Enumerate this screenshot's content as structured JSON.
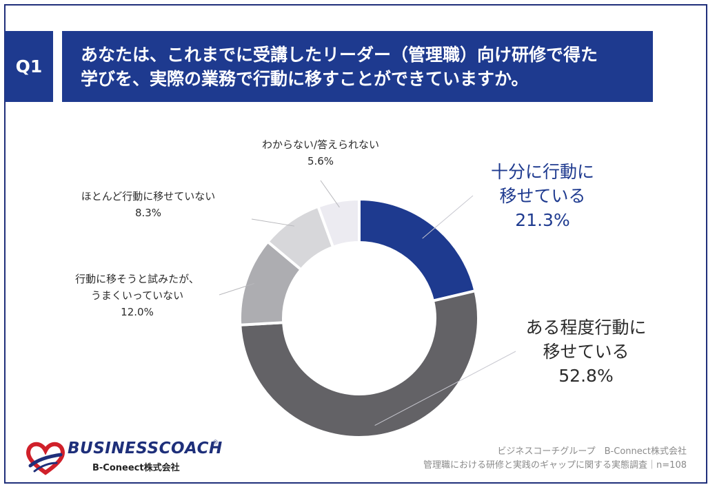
{
  "question": {
    "badge": "Q1",
    "line1": "あなたは、これまでに受講したリーダー（管理職）向け研修で得た",
    "line2": "学びを、実際の業務で行動に移すことができていますか。"
  },
  "chart_data": {
    "type": "pie",
    "donut": true,
    "start": "12 o'clock, clockwise",
    "slices": [
      {
        "label_lines": [
          "十分に行動に",
          "移せている"
        ],
        "value_label": "21.3%",
        "value": 21.3,
        "color": "#1e3a8f",
        "label_color": "#1e3a8f"
      },
      {
        "label_lines": [
          "ある程度行動に",
          "移せている"
        ],
        "value_label": "52.8%",
        "value": 52.8,
        "color": "#636266",
        "label_color": "#2b2b2b"
      },
      {
        "label_lines": [
          "行動に移そうと試みたが、",
          "うまくいっていない"
        ],
        "value_label": "12.0%",
        "value": 12.0,
        "color": "#adadb1",
        "label_color": "#2b2b2b"
      },
      {
        "label_lines": [
          "ほとんど行動に移せていない"
        ],
        "value_label": "8.3%",
        "value": 8.3,
        "color": "#d7d7da",
        "label_color": "#2b2b2b"
      },
      {
        "label_lines": [
          "わからない/答えられない"
        ],
        "value_label": "5.6%",
        "value": 5.6,
        "color": "#ecebf1",
        "label_color": "#2b2b2b"
      }
    ]
  },
  "footer": {
    "line1": "ビジネスコーチグループ　B-Connect株式会社",
    "line2": "管理職における研修と実践のギャップに関する実態調査｜n=108"
  },
  "logo": {
    "name": "BUSINESSCOACH",
    "registered": "®",
    "sub": "B-Coneect株式会社"
  }
}
